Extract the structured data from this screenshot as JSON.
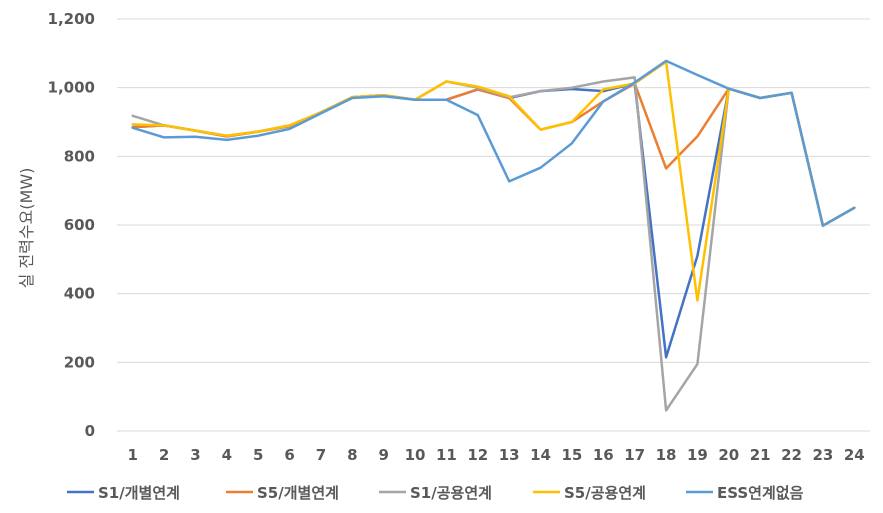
{
  "chart_data": {
    "type": "line",
    "title": "",
    "xlabel": "",
    "ylabel": "실 전력수요(MW)",
    "ylim": [
      0,
      1200
    ],
    "yticks": [
      0,
      200,
      400,
      600,
      800,
      1000,
      1200
    ],
    "ytick_labels": [
      "0",
      "200",
      "400",
      "600",
      "800",
      "1,000",
      "1,200"
    ],
    "categories": [
      "1",
      "2",
      "3",
      "4",
      "5",
      "6",
      "7",
      "8",
      "9",
      "10",
      "11",
      "12",
      "13",
      "14",
      "15",
      "16",
      "17",
      "18",
      "19",
      "20",
      "21",
      "22",
      "23",
      "24"
    ],
    "grid": "horizontal",
    "legend_position": "bottom",
    "series": [
      {
        "name": "S1/개별연계",
        "color": "#4472C4",
        "values": [
          885,
          890,
          875,
          858,
          872,
          888,
          928,
          972,
          978,
          965,
          965,
          995,
          970,
          990,
          996,
          990,
          1012,
          215,
          510,
          997,
          970,
          985,
          598,
          650
        ]
      },
      {
        "name": "S5/개별연계",
        "color": "#ED7D31",
        "values": [
          885,
          890,
          875,
          858,
          872,
          888,
          928,
          972,
          978,
          965,
          965,
          995,
          970,
          878,
          900,
          960,
          1012,
          765,
          858,
          997,
          970,
          985,
          598,
          650
        ]
      },
      {
        "name": "S1/공용연계",
        "color": "#A5A5A5",
        "values": [
          918,
          890,
          875,
          860,
          872,
          890,
          928,
          972,
          978,
          965,
          1018,
          1000,
          972,
          990,
          1000,
          1018,
          1030,
          60,
          195,
          997,
          970,
          985,
          598,
          650
        ]
      },
      {
        "name": "S5/공용연계",
        "color": "#FFC000",
        "values": [
          893,
          890,
          875,
          860,
          872,
          890,
          928,
          972,
          978,
          965,
          1018,
          1003,
          975,
          878,
          900,
          995,
          1012,
          1075,
          380,
          997,
          970,
          985,
          598,
          650
        ]
      },
      {
        "name": "ESS연계없음",
        "color": "#5B9BD5",
        "values": [
          883,
          855,
          857,
          848,
          860,
          880,
          925,
          970,
          975,
          965,
          965,
          920,
          727,
          767,
          838,
          960,
          1015,
          1078,
          1037,
          997,
          970,
          985,
          598,
          650
        ]
      }
    ]
  }
}
